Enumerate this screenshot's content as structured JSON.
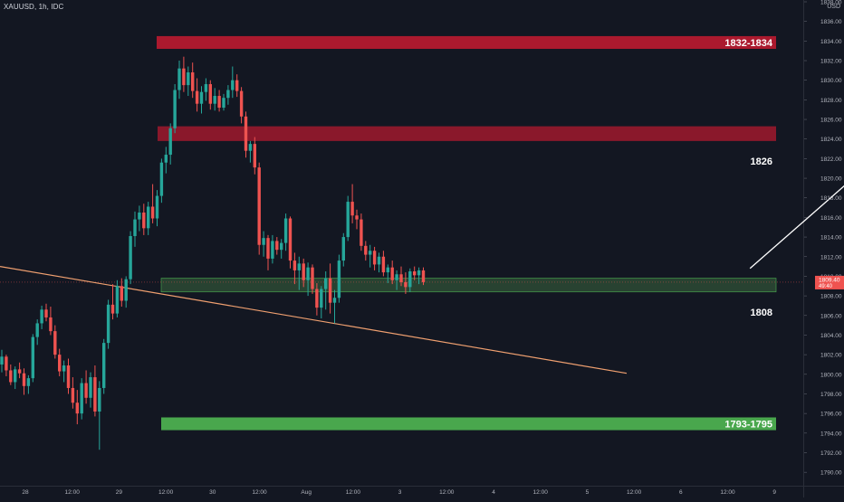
{
  "header": {
    "symbol_line": "XAUUSD, 1h, IDC",
    "currency": "USD"
  },
  "colors": {
    "background": "#131722",
    "up_candle": "#26a69a",
    "down_candle": "#ef5350",
    "resistance_zone": "#b3192f",
    "support_zone_light": "#4caf50",
    "support_zone_dark": "#2d4a34",
    "trendline": "#f0a070",
    "arrow": "#ffffff",
    "price_tag": "#ef5350",
    "axis_text": "#b2b5be"
  },
  "chart_data": {
    "type": "candlestick",
    "ylim": [
      1789,
      1838
    ],
    "y_ticks": [
      1790.0,
      1792.0,
      1794.0,
      1796.0,
      1798.0,
      1800.0,
      1802.0,
      1804.0,
      1806.0,
      1808.0,
      1810.0,
      1812.0,
      1814.0,
      1816.0,
      1818.0,
      1820.0,
      1822.0,
      1824.0,
      1826.0,
      1828.0,
      1830.0,
      1832.0,
      1834.0,
      1836.0,
      1838.0
    ],
    "x_ticks": [
      "28",
      "12:00",
      "29",
      "12:00",
      "30",
      "12:00",
      "Aug",
      "12:00",
      "3",
      "12:00",
      "4",
      "12:00",
      "5",
      "12:00",
      "6",
      "12:00",
      "9",
      "12:00"
    ],
    "last_price_tag": {
      "price": "1809.40",
      "countdown": "49:40",
      "value": 1809.4
    },
    "trendline": {
      "start": [
        0,
        1811.0
      ],
      "end": [
        140,
        1800.1
      ]
    },
    "arrow": {
      "start": [
        168,
        1810.8
      ],
      "end": [
        222,
        1832.2
      ]
    },
    "zones": [
      {
        "name": "zone-1832-1834",
        "label": "1832-1834",
        "y_top": 1834.5,
        "y_bottom": 1833.2,
        "kind": "resistance-strong",
        "label_inside": true
      },
      {
        "name": "zone-1826",
        "label": "1826",
        "y_top": 1825.3,
        "y_bottom": 1823.8,
        "kind": "resistance",
        "label_inside": false
      },
      {
        "name": "zone-1808",
        "label": "1808",
        "y_top": 1809.8,
        "y_bottom": 1808.4,
        "kind": "support",
        "label_inside": false
      },
      {
        "name": "zone-1793-1795",
        "label": "1793-1795",
        "y_top": 1795.6,
        "y_bottom": 1794.3,
        "kind": "support-strong",
        "label_inside": true
      }
    ],
    "ohlc": [
      [
        1801.0,
        1802.5,
        1800.2,
        1801.8
      ],
      [
        1801.8,
        1802.0,
        1799.8,
        1800.4
      ],
      [
        1800.4,
        1801.0,
        1798.9,
        1799.2
      ],
      [
        1799.2,
        1800.8,
        1798.5,
        1800.5
      ],
      [
        1800.5,
        1801.2,
        1799.6,
        1800.1
      ],
      [
        1800.1,
        1800.6,
        1797.9,
        1798.8
      ],
      [
        1798.8,
        1799.9,
        1798.0,
        1799.6
      ],
      [
        1799.6,
        1804.1,
        1799.2,
        1803.8
      ],
      [
        1803.8,
        1805.6,
        1803.0,
        1805.2
      ],
      [
        1805.2,
        1807.0,
        1804.6,
        1806.6
      ],
      [
        1806.6,
        1807.2,
        1805.4,
        1805.8
      ],
      [
        1805.8,
        1806.9,
        1804.0,
        1804.4
      ],
      [
        1804.4,
        1805.0,
        1801.6,
        1802.0
      ],
      [
        1802.0,
        1802.6,
        1799.8,
        1800.3
      ],
      [
        1800.3,
        1801.4,
        1799.2,
        1800.9
      ],
      [
        1800.9,
        1801.6,
        1798.0,
        1798.6
      ],
      [
        1798.6,
        1799.7,
        1796.5,
        1797.1
      ],
      [
        1797.1,
        1798.4,
        1794.9,
        1796.0
      ],
      [
        1796.0,
        1799.6,
        1795.4,
        1799.1
      ],
      [
        1799.1,
        1800.4,
        1797.0,
        1797.6
      ],
      [
        1797.6,
        1800.2,
        1796.6,
        1799.7
      ],
      [
        1799.7,
        1800.9,
        1795.7,
        1796.2
      ],
      [
        1796.2,
        1799.3,
        1792.3,
        1798.6
      ],
      [
        1798.6,
        1803.6,
        1798.0,
        1803.2
      ],
      [
        1803.2,
        1807.6,
        1802.6,
        1807.1
      ],
      [
        1807.1,
        1809.2,
        1805.6,
        1806.2
      ],
      [
        1806.2,
        1809.6,
        1805.8,
        1809.0
      ],
      [
        1809.0,
        1809.8,
        1806.9,
        1807.5
      ],
      [
        1807.5,
        1810.0,
        1806.8,
        1809.7
      ],
      [
        1809.7,
        1814.6,
        1809.2,
        1814.1
      ],
      [
        1814.1,
        1816.6,
        1813.0,
        1815.8
      ],
      [
        1815.8,
        1817.2,
        1814.6,
        1816.5
      ],
      [
        1816.5,
        1817.4,
        1814.2,
        1814.9
      ],
      [
        1814.9,
        1817.6,
        1814.2,
        1817.1
      ],
      [
        1817.1,
        1819.4,
        1815.4,
        1815.9
      ],
      [
        1815.9,
        1818.8,
        1815.1,
        1818.2
      ],
      [
        1818.2,
        1822.0,
        1817.5,
        1821.6
      ],
      [
        1821.6,
        1823.2,
        1820.5,
        1822.4
      ],
      [
        1822.4,
        1825.6,
        1821.4,
        1825.1
      ],
      [
        1825.1,
        1829.6,
        1824.6,
        1829.0
      ],
      [
        1829.0,
        1832.0,
        1828.1,
        1831.2
      ],
      [
        1831.2,
        1832.4,
        1828.8,
        1829.5
      ],
      [
        1829.5,
        1831.4,
        1828.4,
        1830.8
      ],
      [
        1830.8,
        1831.8,
        1828.2,
        1828.9
      ],
      [
        1828.9,
        1830.2,
        1826.8,
        1827.6
      ],
      [
        1827.6,
        1829.4,
        1826.6,
        1828.8
      ],
      [
        1828.8,
        1830.2,
        1827.9,
        1829.6
      ],
      [
        1829.6,
        1830.0,
        1827.0,
        1827.6
      ],
      [
        1827.6,
        1829.2,
        1826.9,
        1828.4
      ],
      [
        1828.4,
        1829.0,
        1826.8,
        1827.2
      ],
      [
        1827.2,
        1828.6,
        1826.9,
        1828.2
      ],
      [
        1828.2,
        1829.5,
        1827.5,
        1829.0
      ],
      [
        1829.0,
        1831.4,
        1828.2,
        1830.0
      ],
      [
        1830.0,
        1830.6,
        1828.3,
        1828.9
      ],
      [
        1828.9,
        1829.3,
        1825.6,
        1826.3
      ],
      [
        1826.3,
        1826.8,
        1822.1,
        1822.8
      ],
      [
        1822.8,
        1823.8,
        1821.6,
        1823.5
      ],
      [
        1823.5,
        1824.2,
        1820.4,
        1821.1
      ],
      [
        1821.1,
        1821.6,
        1812.2,
        1813.2
      ],
      [
        1813.2,
        1814.6,
        1812.0,
        1813.9
      ],
      [
        1813.9,
        1814.2,
        1810.6,
        1811.8
      ],
      [
        1811.8,
        1814.2,
        1811.3,
        1813.6
      ],
      [
        1813.6,
        1814.0,
        1812.2,
        1812.7
      ],
      [
        1812.7,
        1813.8,
        1811.8,
        1813.4
      ],
      [
        1813.4,
        1816.4,
        1812.6,
        1815.9
      ],
      [
        1815.9,
        1816.1,
        1810.8,
        1811.6
      ],
      [
        1811.6,
        1812.4,
        1809.2,
        1810.6
      ],
      [
        1810.6,
        1812.0,
        1808.6,
        1811.3
      ],
      [
        1811.3,
        1811.8,
        1808.9,
        1809.6
      ],
      [
        1809.6,
        1811.4,
        1808.0,
        1810.9
      ],
      [
        1810.9,
        1811.2,
        1808.2,
        1808.7
      ],
      [
        1808.7,
        1809.3,
        1806.0,
        1806.8
      ],
      [
        1806.8,
        1809.0,
        1805.7,
        1808.7
      ],
      [
        1808.7,
        1810.5,
        1806.6,
        1809.8
      ],
      [
        1809.8,
        1811.3,
        1806.2,
        1807.3
      ],
      [
        1807.3,
        1808.6,
        1805.2,
        1807.8
      ],
      [
        1807.8,
        1812.2,
        1807.3,
        1811.6
      ],
      [
        1811.6,
        1814.4,
        1811.0,
        1814.0
      ],
      [
        1814.0,
        1818.2,
        1813.6,
        1817.6
      ],
      [
        1817.6,
        1819.4,
        1815.4,
        1816.2
      ],
      [
        1816.2,
        1816.8,
        1814.8,
        1815.8
      ],
      [
        1815.8,
        1816.4,
        1812.6,
        1813.1
      ],
      [
        1813.1,
        1813.6,
        1811.6,
        1812.2
      ],
      [
        1812.2,
        1813.2,
        1810.9,
        1812.6
      ],
      [
        1812.6,
        1813.0,
        1810.6,
        1811.2
      ],
      [
        1811.2,
        1812.4,
        1810.4,
        1812.0
      ],
      [
        1812.0,
        1812.6,
        1810.0,
        1810.4
      ],
      [
        1810.4,
        1811.2,
        1809.3,
        1810.9
      ],
      [
        1810.9,
        1811.6,
        1809.2,
        1809.6
      ],
      [
        1809.6,
        1810.6,
        1808.6,
        1810.2
      ],
      [
        1810.2,
        1811.0,
        1809.0,
        1809.4
      ],
      [
        1809.4,
        1810.4,
        1808.2,
        1808.9
      ],
      [
        1808.9,
        1810.8,
        1808.4,
        1810.5
      ],
      [
        1810.5,
        1811.0,
        1809.6,
        1810.1
      ],
      [
        1810.1,
        1810.9,
        1809.2,
        1810.6
      ],
      [
        1810.6,
        1810.9,
        1809.1,
        1809.4
      ]
    ]
  }
}
